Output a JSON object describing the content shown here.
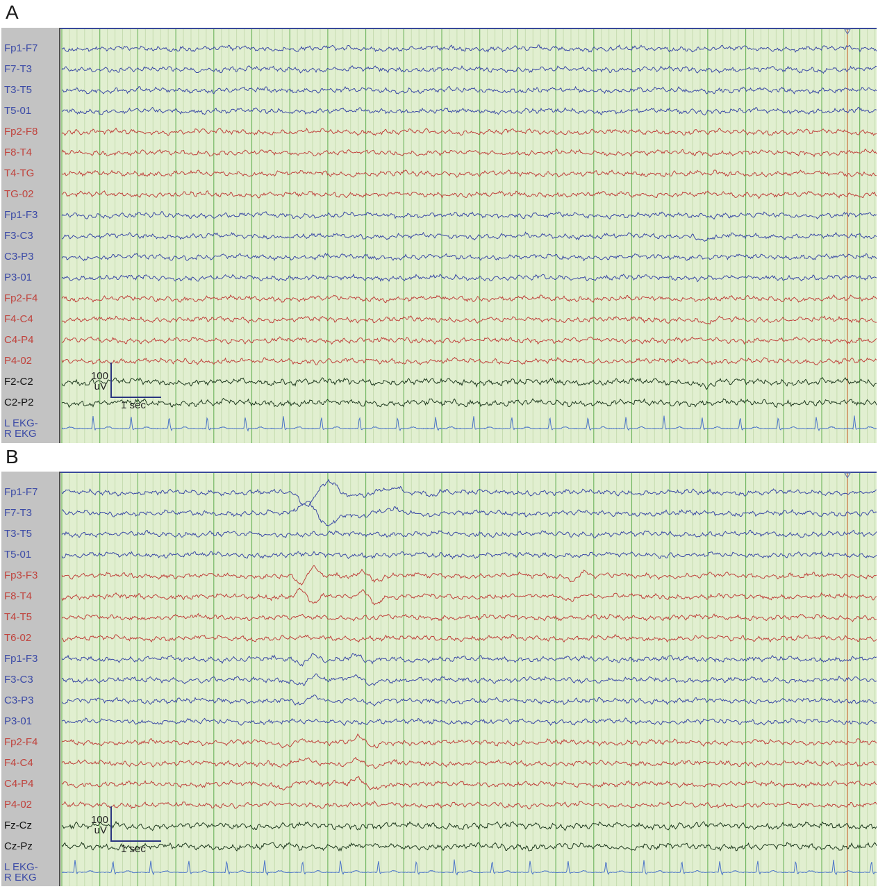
{
  "panels": [
    {
      "letter": "A",
      "channels": [
        {
          "label": "Fp1-F7",
          "color": "blue"
        },
        {
          "label": "F7-T3",
          "color": "blue"
        },
        {
          "label": "T3-T5",
          "color": "blue"
        },
        {
          "label": "T5-01",
          "color": "blue"
        },
        {
          "label": "Fp2-F8",
          "color": "red"
        },
        {
          "label": "F8-T4",
          "color": "red"
        },
        {
          "label": "T4-TG",
          "color": "red"
        },
        {
          "label": "TG-02",
          "color": "red"
        },
        {
          "label": "Fp1-F3",
          "color": "blue"
        },
        {
          "label": "F3-C3",
          "color": "blue"
        },
        {
          "label": "C3-P3",
          "color": "blue"
        },
        {
          "label": "P3-01",
          "color": "blue"
        },
        {
          "label": "Fp2-F4",
          "color": "red"
        },
        {
          "label": "F4-C4",
          "color": "red"
        },
        {
          "label": "C4-P4",
          "color": "red"
        },
        {
          "label": "P4-02",
          "color": "red"
        },
        {
          "label": "F2-C2",
          "color": "black"
        },
        {
          "label": "C2-P2",
          "color": "black"
        }
      ],
      "ekg_label_line1": "L EKG-",
      "ekg_label_line2": "R EKG",
      "scale_amplitude": "100",
      "scale_amplitude_unit": "uV",
      "scale_time": "1 sec"
    },
    {
      "letter": "B",
      "channels": [
        {
          "label": "Fp1-F7",
          "color": "blue"
        },
        {
          "label": "F7-T3",
          "color": "blue"
        },
        {
          "label": "T3-T5",
          "color": "blue"
        },
        {
          "label": "T5-01",
          "color": "blue"
        },
        {
          "label": "Fp3-F3",
          "color": "red"
        },
        {
          "label": "F8-T4",
          "color": "red"
        },
        {
          "label": "T4-T5",
          "color": "red"
        },
        {
          "label": "T6-02",
          "color": "red"
        },
        {
          "label": "Fp1-F3",
          "color": "blue"
        },
        {
          "label": "F3-C3",
          "color": "blue"
        },
        {
          "label": "C3-P3",
          "color": "blue"
        },
        {
          "label": "P3-01",
          "color": "blue"
        },
        {
          "label": "Fp2-F4",
          "color": "red"
        },
        {
          "label": "F4-C4",
          "color": "red"
        },
        {
          "label": "C4-P4",
          "color": "red"
        },
        {
          "label": "P4-02",
          "color": "red"
        },
        {
          "label": "Fz-Cz",
          "color": "black"
        },
        {
          "label": "Cz-Pz",
          "color": "black"
        }
      ],
      "ekg_label_line1": "L EKG-",
      "ekg_label_line2": "R EKG",
      "scale_amplitude": "100",
      "scale_amplitude_unit": "uV",
      "scale_time": "1 sec"
    }
  ],
  "colors": {
    "blue_trace": "#3b4aa6",
    "red_trace": "#c0433d",
    "black_trace": "#1f3a1f",
    "ekg_trace": "#4a73c8",
    "grid_minor": "#c6dcb0",
    "grid_major": "#6ab35a",
    "background": "#e1efd0",
    "cursor": "#c8703a"
  },
  "chart_data": [
    {
      "type": "line",
      "title": "",
      "panel": "A",
      "series": [],
      "xlabel": "",
      "ylabel": ""
    },
    {
      "type": "line",
      "title": "",
      "panel": "B",
      "series": [],
      "xlabel": "",
      "ylabel": ""
    }
  ]
}
